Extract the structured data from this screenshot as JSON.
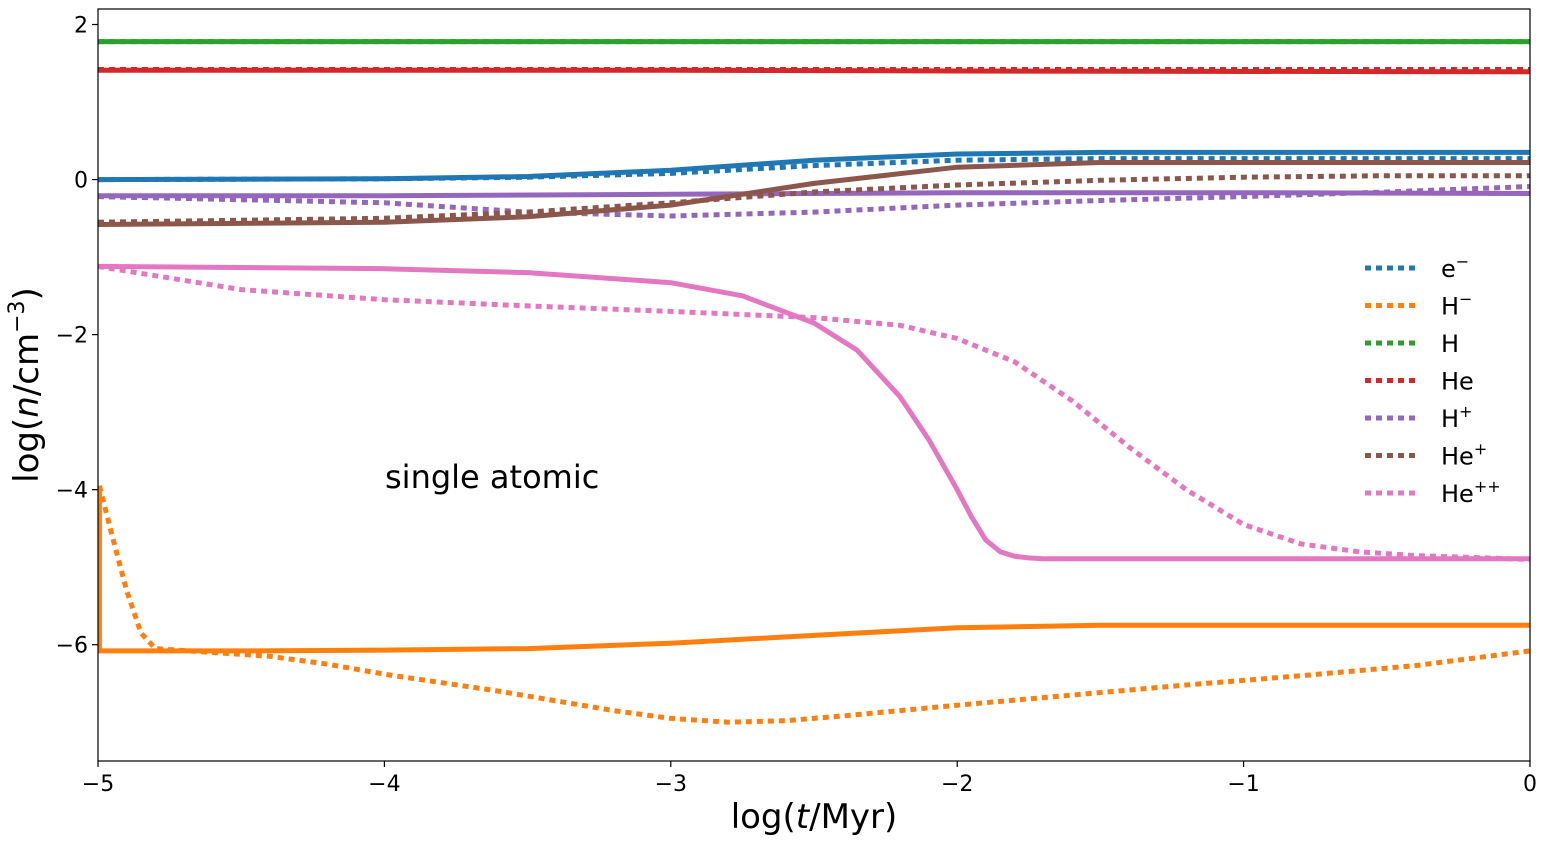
{
  "chart_data": {
    "type": "line",
    "title": "",
    "xlabel_parts": [
      "log(",
      "t",
      "/Myr)"
    ],
    "ylabel_parts": [
      "log(",
      "n",
      "/cm",
      "−3",
      ")"
    ],
    "xlim": [
      -5,
      0
    ],
    "ylim": [
      -7.5,
      2.2
    ],
    "xticks": [
      -5,
      -4,
      -3,
      -2,
      -1,
      0
    ],
    "xtick_labels": [
      "−5",
      "−4",
      "−3",
      "−2",
      "−1",
      "0"
    ],
    "yticks": [
      -6,
      -4,
      -2,
      0,
      2
    ],
    "ytick_labels": [
      "−6",
      "−4",
      "−2",
      "0",
      "2"
    ],
    "annotation": "single atomic",
    "legend_position": "center-right",
    "series": [
      {
        "name": "e⁻",
        "base": "e",
        "sup": "−",
        "color": "#1f77b4",
        "solid": {
          "x": [
            -5,
            -4,
            -3.5,
            -3,
            -2.5,
            -2,
            -1.5,
            -1,
            0
          ],
          "y": [
            0.0,
            0.01,
            0.04,
            0.12,
            0.25,
            0.33,
            0.35,
            0.35,
            0.35
          ]
        },
        "dotted": {
          "x": [
            -5,
            -4,
            -3.5,
            -3,
            -2.5,
            -2,
            -1.5,
            -1,
            0
          ],
          "y": [
            0.0,
            0.01,
            0.03,
            0.08,
            0.18,
            0.25,
            0.27,
            0.27,
            0.27
          ]
        }
      },
      {
        "name": "H⁻",
        "base": "H",
        "sup": "−",
        "color": "#ff7f0e",
        "solid": {
          "x": [
            -4.995,
            -4.995,
            -4.5,
            -4,
            -3.5,
            -3,
            -2.5,
            -2,
            -1.5,
            -1,
            -0.5,
            0
          ],
          "y": [
            -3.95,
            -6.08,
            -6.08,
            -6.07,
            -6.05,
            -5.98,
            -5.88,
            -5.78,
            -5.75,
            -5.75,
            -5.75,
            -5.75
          ]
        },
        "dotted": {
          "x": [
            -4.995,
            -4.95,
            -4.9,
            -4.85,
            -4.8,
            -4.6,
            -4.4,
            -4.2,
            -4,
            -3.6,
            -3.2,
            -3,
            -2.8,
            -2.6,
            -2.4,
            -2.2,
            -2,
            -1.6,
            -1.2,
            -0.8,
            -0.4,
            0
          ],
          "y": [
            -3.95,
            -4.6,
            -5.3,
            -5.85,
            -6.05,
            -6.1,
            -6.15,
            -6.25,
            -6.38,
            -6.6,
            -6.85,
            -6.95,
            -7.0,
            -6.98,
            -6.92,
            -6.85,
            -6.78,
            -6.65,
            -6.52,
            -6.4,
            -6.27,
            -6.08
          ]
        }
      },
      {
        "name": "H",
        "base": "H",
        "sup": "",
        "color": "#2ca02c",
        "solid": {
          "x": [
            -5,
            0
          ],
          "y": [
            1.78,
            1.78
          ]
        },
        "dotted": {
          "x": [
            -5,
            0
          ],
          "y": [
            1.78,
            1.78
          ]
        }
      },
      {
        "name": "He",
        "base": "He",
        "sup": "",
        "color": "#d62728",
        "solid": {
          "x": [
            -5,
            -3,
            -2,
            0
          ],
          "y": [
            1.41,
            1.41,
            1.4,
            1.39
          ]
        },
        "dotted": {
          "x": [
            -5,
            0
          ],
          "y": [
            1.42,
            1.42
          ]
        }
      },
      {
        "name": "H⁺",
        "base": "H",
        "sup": "+",
        "color": "#9467bd",
        "solid": {
          "x": [
            -5,
            -4,
            -3,
            -2,
            -1,
            0
          ],
          "y": [
            -0.21,
            -0.21,
            -0.19,
            -0.17,
            -0.17,
            -0.18
          ]
        },
        "dotted": {
          "x": [
            -5,
            -4,
            -3.5,
            -3,
            -2.5,
            -2,
            -1.5,
            -1,
            -0.5,
            0
          ],
          "y": [
            -0.22,
            -0.3,
            -0.42,
            -0.47,
            -0.42,
            -0.33,
            -0.27,
            -0.22,
            -0.16,
            -0.09
          ]
        }
      },
      {
        "name": "He⁺",
        "base": "He",
        "sup": "+",
        "color": "#8c564b",
        "solid": {
          "x": [
            -5,
            -4,
            -3.5,
            -3,
            -2.5,
            -2,
            -1.5,
            -1,
            0
          ],
          "y": [
            -0.58,
            -0.55,
            -0.48,
            -0.33,
            -0.05,
            0.16,
            0.22,
            0.22,
            0.22
          ]
        },
        "dotted": {
          "x": [
            -5,
            -4,
            -3.5,
            -3,
            -2.5,
            -2,
            -1.5,
            -1,
            -0.5,
            0
          ],
          "y": [
            -0.55,
            -0.5,
            -0.42,
            -0.3,
            -0.16,
            -0.07,
            -0.01,
            0.03,
            0.05,
            0.05
          ]
        }
      },
      {
        "name": "He⁺⁺",
        "base": "He",
        "sup": "++",
        "color": "#e377c2",
        "solid": {
          "x": [
            -5,
            -4,
            -3.5,
            -3,
            -2.75,
            -2.5,
            -2.35,
            -2.2,
            -2.1,
            -2.0,
            -1.95,
            -1.9,
            -1.85,
            -1.8,
            -1.75,
            -1.7,
            -1.5,
            -1,
            0
          ],
          "y": [
            -1.12,
            -1.15,
            -1.2,
            -1.33,
            -1.5,
            -1.85,
            -2.2,
            -2.8,
            -3.35,
            -4.0,
            -4.35,
            -4.65,
            -4.8,
            -4.86,
            -4.88,
            -4.89,
            -4.89,
            -4.89,
            -4.89
          ]
        },
        "dotted": {
          "x": [
            -5,
            -4.5,
            -4,
            -3.5,
            -3,
            -2.5,
            -2.2,
            -2,
            -1.8,
            -1.6,
            -1.4,
            -1.2,
            -1.0,
            -0.8,
            -0.6,
            -0.4,
            0
          ],
          "y": [
            -1.12,
            -1.42,
            -1.55,
            -1.63,
            -1.7,
            -1.78,
            -1.88,
            -2.05,
            -2.35,
            -2.85,
            -3.45,
            -4.0,
            -4.45,
            -4.7,
            -4.8,
            -4.85,
            -4.9
          ]
        }
      }
    ]
  }
}
